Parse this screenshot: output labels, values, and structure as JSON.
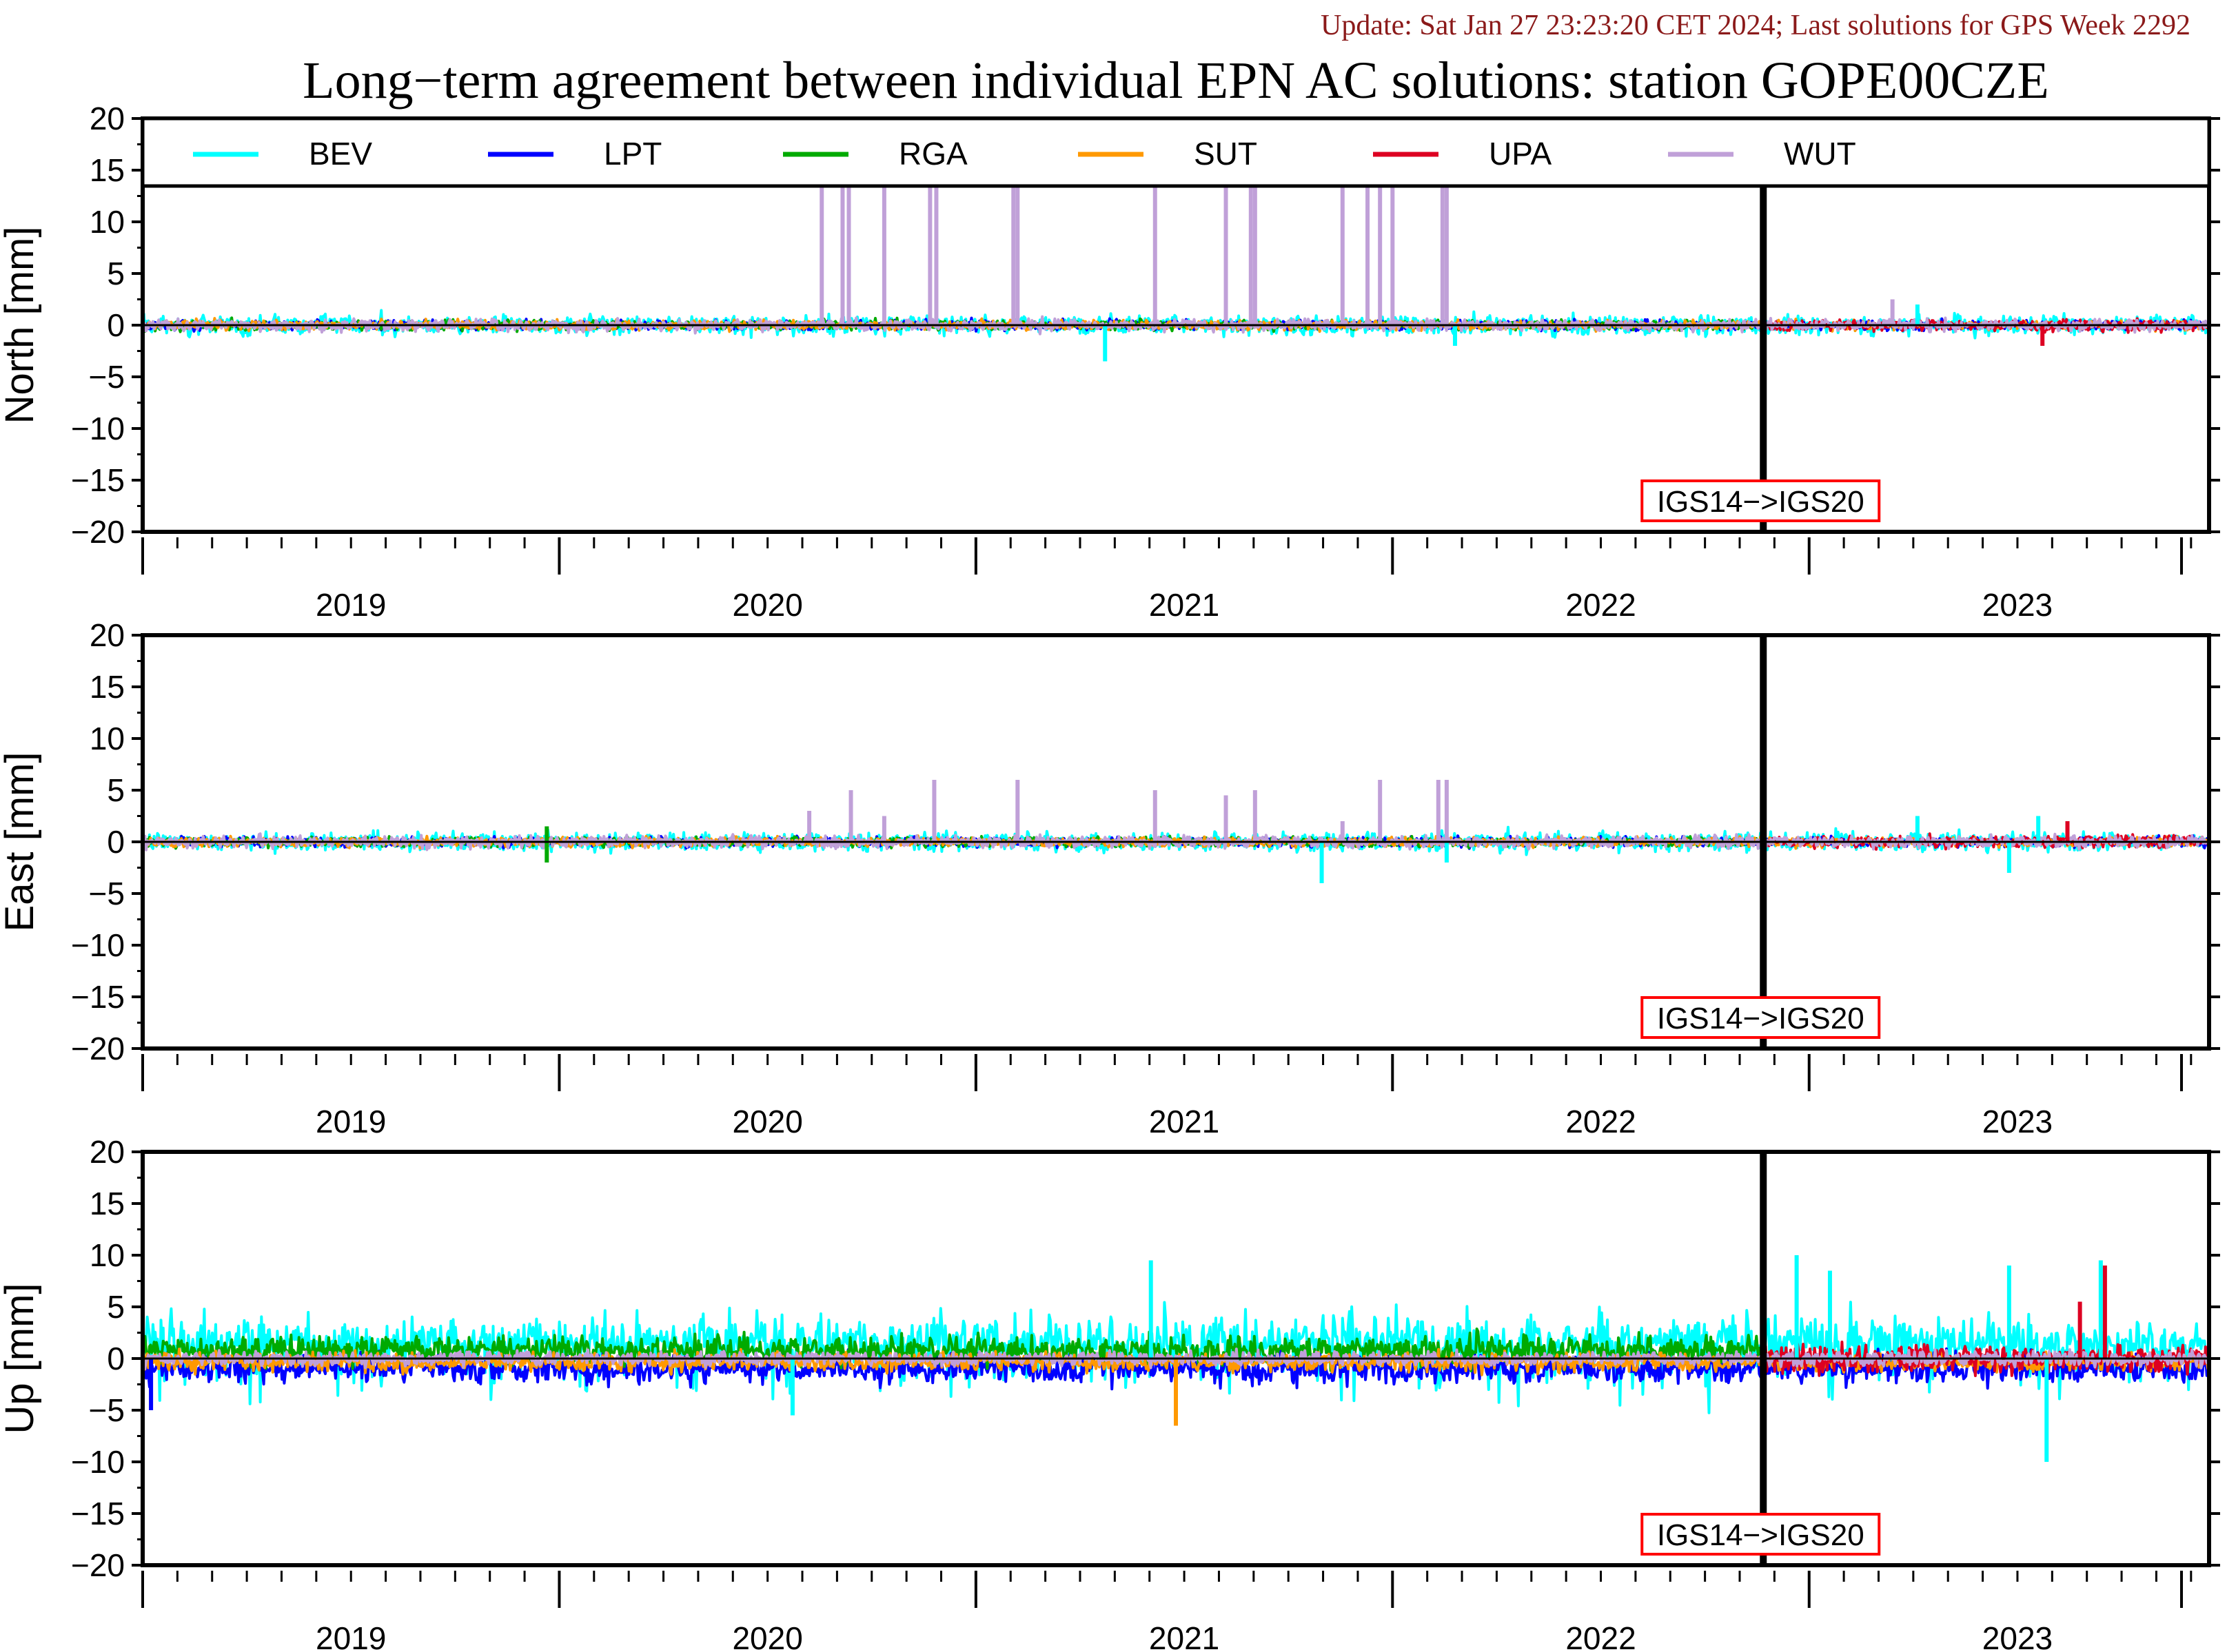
{
  "header": {
    "update_text": "Update: Sat Jan 27 23:23:20 CET 2024; Last solutions for GPS Week 2292",
    "title": "Long−term agreement between individual EPN AC solutions: station GOPE00CZE"
  },
  "colors": {
    "BEV": "#00ffff",
    "LPT": "#0000ff",
    "RGA": "#00aa00",
    "SUT": "#ff9900",
    "UPA": "#dd0022",
    "WUT": "#c0a0d8",
    "annotation_box": "#ff0000",
    "update_text": "#8b1a1a"
  },
  "chart_data": [
    {
      "type": "line",
      "panel": "north",
      "ylabel": "North [mm]",
      "ylim": [
        -20,
        20
      ],
      "yticks": [
        "20",
        "15",
        "10",
        "5",
        "0",
        "−5",
        "−10",
        "−15",
        "−20"
      ],
      "xlim": [
        2018.5,
        2023.46
      ],
      "year_labels": [
        "2019",
        "2020",
        "2021",
        "2022",
        "2023"
      ],
      "year_label_x": [
        2019.0,
        2020.0,
        2021.0,
        2022.0,
        2023.0
      ],
      "reference_frame_change_x": 2022.39,
      "annotation": "IGS14−>IGS20",
      "legend": [
        "BEV",
        "LPT",
        "RGA",
        "SUT",
        "UPA",
        "WUT"
      ],
      "series_summary": [
        {
          "name": "BEV",
          "range": [
            2018.5,
            2023.46
          ],
          "typical_amplitude_mm": 0.8
        },
        {
          "name": "LPT",
          "range": [
            2018.5,
            2023.46
          ],
          "typical_amplitude_mm": 0.4
        },
        {
          "name": "RGA",
          "range": [
            2018.5,
            2022.39
          ],
          "typical_amplitude_mm": 0.4
        },
        {
          "name": "SUT",
          "range": [
            2018.5,
            2023.46
          ],
          "typical_amplitude_mm": 0.4
        },
        {
          "name": "UPA",
          "range": [
            2022.39,
            2023.46
          ],
          "typical_amplitude_mm": 0.5
        },
        {
          "name": "WUT",
          "range": [
            2018.5,
            2023.46
          ],
          "typical_amplitude_mm": 0.5
        }
      ],
      "spikes": [
        {
          "series": "WUT",
          "x": 2020.13,
          "y": 20
        },
        {
          "series": "WUT",
          "x": 2020.18,
          "y": 20
        },
        {
          "series": "WUT",
          "x": 2020.195,
          "y": 20
        },
        {
          "series": "WUT",
          "x": 2020.28,
          "y": 20
        },
        {
          "series": "WUT",
          "x": 2020.39,
          "y": 20
        },
        {
          "series": "WUT",
          "x": 2020.405,
          "y": 20
        },
        {
          "series": "WUT",
          "x": 2020.59,
          "y": 20
        },
        {
          "series": "WUT",
          "x": 2020.6,
          "y": 20
        },
        {
          "series": "WUT",
          "x": 2020.93,
          "y": 20
        },
        {
          "series": "WUT",
          "x": 2021.1,
          "y": 20
        },
        {
          "series": "WUT",
          "x": 2021.16,
          "y": 20
        },
        {
          "series": "WUT",
          "x": 2021.17,
          "y": 20
        },
        {
          "series": "WUT",
          "x": 2021.38,
          "y": 20
        },
        {
          "series": "WUT",
          "x": 2021.44,
          "y": 20
        },
        {
          "series": "WUT",
          "x": 2021.47,
          "y": 20
        },
        {
          "series": "WUT",
          "x": 2021.5,
          "y": 20
        },
        {
          "series": "WUT",
          "x": 2021.62,
          "y": 20
        },
        {
          "series": "WUT",
          "x": 2021.63,
          "y": 20
        },
        {
          "series": "BEV",
          "x": 2020.81,
          "y": -3.5
        },
        {
          "series": "BEV",
          "x": 2021.65,
          "y": -2.0
        },
        {
          "series": "WUT",
          "x": 2022.7,
          "y": 2.5
        },
        {
          "series": "BEV",
          "x": 2022.76,
          "y": 2.0
        },
        {
          "series": "UPA",
          "x": 2023.06,
          "y": -2.0
        }
      ]
    },
    {
      "type": "line",
      "panel": "east",
      "ylabel": "East [mm]",
      "ylim": [
        -20,
        20
      ],
      "yticks": [
        "20",
        "15",
        "10",
        "5",
        "0",
        "−5",
        "−10",
        "−15",
        "−20"
      ],
      "xlim": [
        2018.5,
        2023.46
      ],
      "year_labels": [
        "2019",
        "2020",
        "2021",
        "2022",
        "2023"
      ],
      "year_label_x": [
        2019.0,
        2020.0,
        2021.0,
        2022.0,
        2023.0
      ],
      "reference_frame_change_x": 2022.39,
      "annotation": "IGS14−>IGS20",
      "series_summary": [
        {
          "name": "BEV",
          "range": [
            2018.5,
            2023.46
          ],
          "typical_amplitude_mm": 0.8
        },
        {
          "name": "LPT",
          "range": [
            2018.5,
            2023.46
          ],
          "typical_amplitude_mm": 0.4
        },
        {
          "name": "RGA",
          "range": [
            2018.5,
            2022.39
          ],
          "typical_amplitude_mm": 0.4
        },
        {
          "name": "SUT",
          "range": [
            2018.5,
            2023.46
          ],
          "typical_amplitude_mm": 0.4
        },
        {
          "name": "UPA",
          "range": [
            2022.39,
            2023.46
          ],
          "typical_amplitude_mm": 0.5
        },
        {
          "name": "WUT",
          "range": [
            2018.5,
            2023.46
          ],
          "typical_amplitude_mm": 0.5
        }
      ],
      "spikes": [
        {
          "series": "WUT",
          "x": 2020.1,
          "y": 3.0
        },
        {
          "series": "WUT",
          "x": 2020.2,
          "y": 5.0
        },
        {
          "series": "WUT",
          "x": 2020.28,
          "y": 2.5
        },
        {
          "series": "WUT",
          "x": 2020.4,
          "y": 6.0
        },
        {
          "series": "WUT",
          "x": 2020.6,
          "y": 6.0
        },
        {
          "series": "WUT",
          "x": 2020.93,
          "y": 5.0
        },
        {
          "series": "WUT",
          "x": 2021.1,
          "y": 4.5
        },
        {
          "series": "WUT",
          "x": 2021.17,
          "y": 5.0
        },
        {
          "series": "WUT",
          "x": 2021.38,
          "y": 2.0
        },
        {
          "series": "WUT",
          "x": 2021.47,
          "y": 6.0
        },
        {
          "series": "WUT",
          "x": 2021.61,
          "y": 6.0
        },
        {
          "series": "WUT",
          "x": 2021.63,
          "y": 6.0
        },
        {
          "series": "RGA",
          "x": 2019.47,
          "y": -2.0
        },
        {
          "series": "RGA",
          "x": 2019.47,
          "y": 1.5
        },
        {
          "series": "BEV",
          "x": 2021.33,
          "y": -4.0
        },
        {
          "series": "BEV",
          "x": 2021.63,
          "y": -2.0
        },
        {
          "series": "BEV",
          "x": 2022.76,
          "y": 2.5
        },
        {
          "series": "BEV",
          "x": 2023.05,
          "y": 2.5
        },
        {
          "series": "UPA",
          "x": 2023.12,
          "y": 2.0
        },
        {
          "series": "BEV",
          "x": 2022.98,
          "y": -3.0
        }
      ]
    },
    {
      "type": "line",
      "panel": "up",
      "ylabel": "Up [mm]",
      "ylim": [
        -20,
        20
      ],
      "yticks": [
        "20",
        "15",
        "10",
        "5",
        "0",
        "−5",
        "−10",
        "−15",
        "−20"
      ],
      "xlim": [
        2018.5,
        2023.46
      ],
      "year_labels": [
        "2019",
        "2020",
        "2021",
        "2022",
        "2023"
      ],
      "year_label_x": [
        2019.0,
        2020.0,
        2021.0,
        2022.0,
        2023.0
      ],
      "reference_frame_change_x": 2022.39,
      "annotation": "IGS14−>IGS20",
      "series_summary": [
        {
          "name": "BEV",
          "range": [
            2018.5,
            2023.46
          ],
          "typical_amplitude_mm": 3.0
        },
        {
          "name": "LPT",
          "range": [
            2018.5,
            2023.46
          ],
          "typical_amplitude_mm": 1.2
        },
        {
          "name": "RGA",
          "range": [
            2018.5,
            2022.39
          ],
          "typical_amplitude_mm": 1.2
        },
        {
          "name": "SUT",
          "range": [
            2018.5,
            2023.46
          ],
          "typical_amplitude_mm": 0.8
        },
        {
          "name": "UPA",
          "range": [
            2022.39,
            2023.46
          ],
          "typical_amplitude_mm": 1.2
        },
        {
          "name": "WUT",
          "range": [
            2018.5,
            2023.46
          ],
          "typical_amplitude_mm": 0.6
        }
      ],
      "spikes": [
        {
          "series": "BEV",
          "x": 2020.92,
          "y": 9.5
        },
        {
          "series": "SUT",
          "x": 2020.98,
          "y": -6.5
        },
        {
          "series": "BEV",
          "x": 2020.06,
          "y": -5.5
        },
        {
          "series": "LPT",
          "x": 2018.52,
          "y": -5.0
        },
        {
          "series": "BEV",
          "x": 2022.47,
          "y": 10.0
        },
        {
          "series": "BEV",
          "x": 2022.55,
          "y": 8.5
        },
        {
          "series": "BEV",
          "x": 2022.98,
          "y": 9.0
        },
        {
          "series": "BEV",
          "x": 2023.2,
          "y": 9.5
        },
        {
          "series": "BEV",
          "x": 2023.07,
          "y": -10.0
        },
        {
          "series": "UPA",
          "x": 2023.21,
          "y": 9.0
        },
        {
          "series": "UPA",
          "x": 2023.15,
          "y": 5.5
        }
      ]
    }
  ]
}
